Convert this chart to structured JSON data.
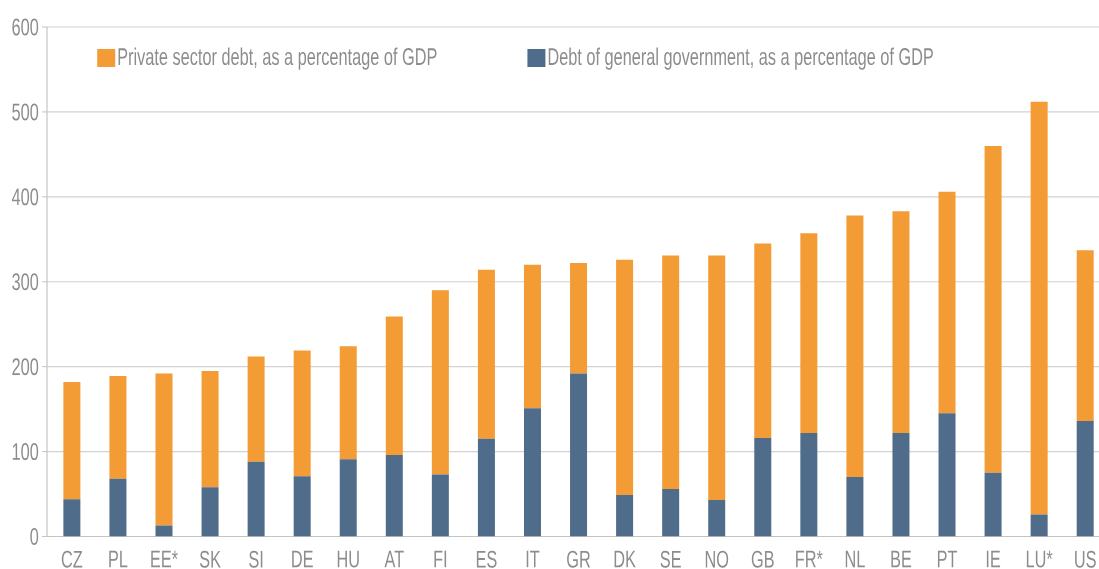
{
  "chart_data": {
    "type": "bar",
    "stacked": true,
    "categories": [
      "CZ",
      "PL",
      "EE*",
      "SK",
      "SI",
      "DE",
      "HU",
      "AT",
      "FI",
      "ES",
      "IT",
      "GR",
      "DK",
      "SE",
      "NO",
      "GB",
      "FR*",
      "NL",
      "BE",
      "PT",
      "IE",
      "LU*",
      "US"
    ],
    "series": [
      {
        "name": "Debt of general government, as a percentage of GDP",
        "color": "#4f6c8a",
        "values": [
          44,
          68,
          13,
          58,
          88,
          71,
          91,
          96,
          73,
          115,
          151,
          192,
          49,
          56,
          43,
          116,
          122,
          70,
          122,
          145,
          75,
          26,
          136
        ]
      },
      {
        "name": "Private sector debt, as a percentage of GDP",
        "color": "#f39c36",
        "values": [
          138,
          121,
          179,
          137,
          124,
          148,
          133,
          163,
          217,
          199,
          169,
          130,
          277,
          275,
          288,
          229,
          235,
          308,
          261,
          261,
          385,
          486,
          201
        ]
      }
    ],
    "ylim": [
      0,
      600
    ],
    "yticks": [
      0,
      100,
      200,
      300,
      400,
      500,
      600
    ],
    "grid": "y",
    "legend": "top left"
  }
}
